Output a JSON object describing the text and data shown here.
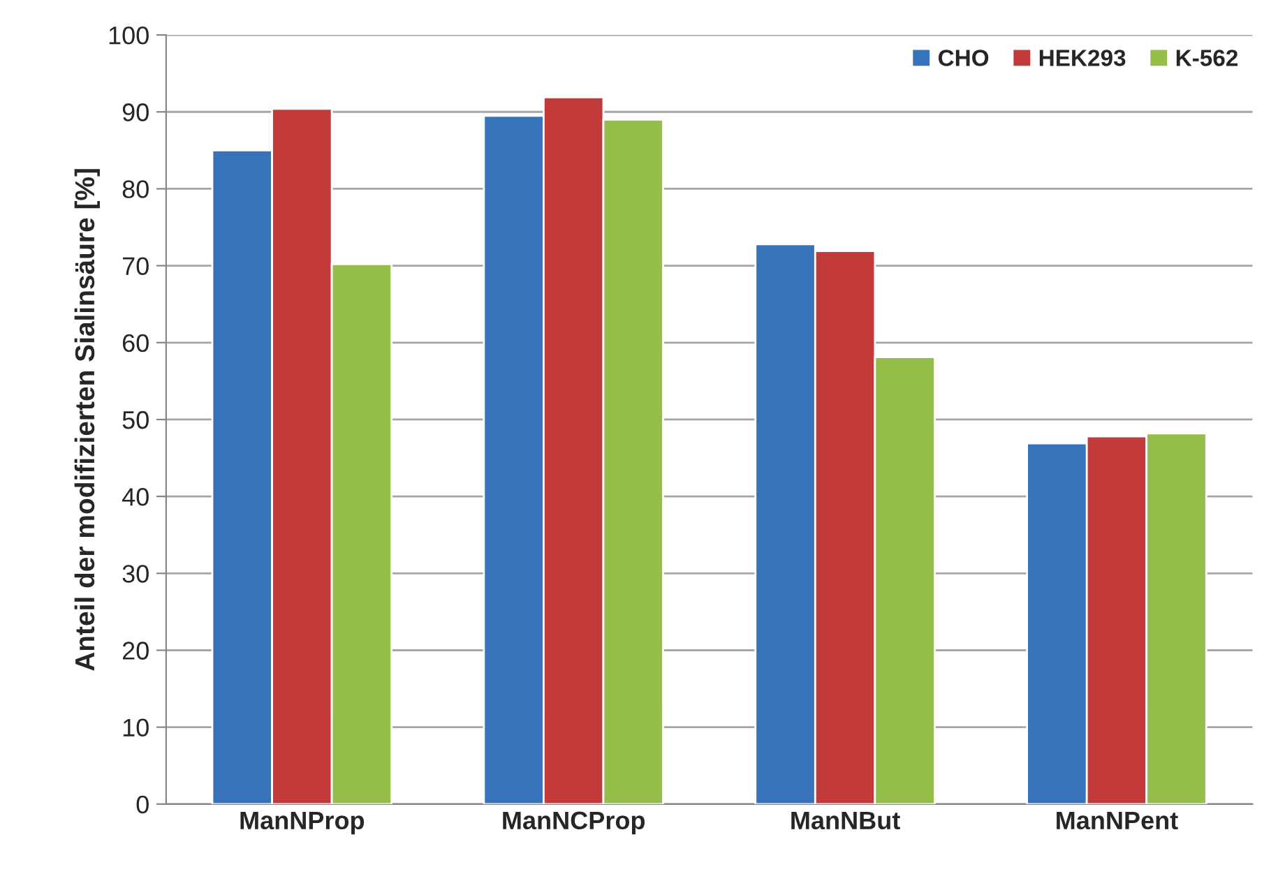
{
  "chart_data": {
    "type": "bar",
    "ylabel": "Anteil der modifizierten Sialinsäure [%]",
    "categories": [
      "ManNProp",
      "ManNCProp",
      "ManNBut",
      "ManNPent"
    ],
    "series": [
      {
        "name": "CHO",
        "color": "#3673bb",
        "values": [
          85.0,
          89.5,
          72.8,
          46.9
        ]
      },
      {
        "name": "HEK293",
        "color": "#c23b3a",
        "values": [
          90.4,
          91.9,
          71.9,
          47.8
        ]
      },
      {
        "name": "K-562",
        "color": "#94bd4a",
        "values": [
          70.2,
          89.0,
          58.1,
          48.2
        ]
      }
    ],
    "ylim": [
      0,
      100
    ],
    "yticks": [
      0,
      10,
      20,
      30,
      40,
      50,
      60,
      70,
      80,
      90,
      100
    ],
    "grid": "y",
    "legend": "top right"
  }
}
